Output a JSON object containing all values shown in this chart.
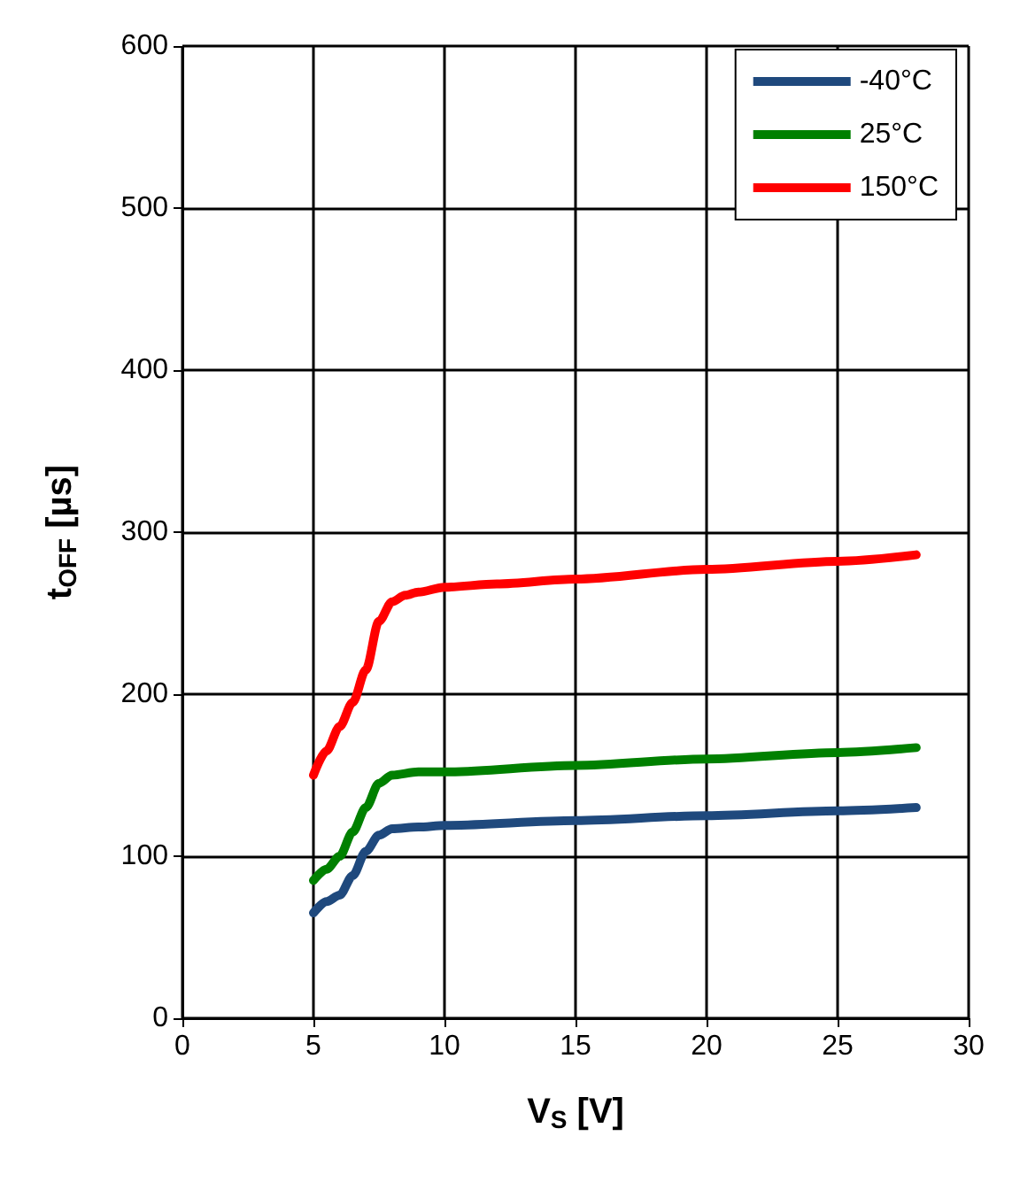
{
  "chart_data": {
    "type": "line",
    "xlabel": "V$_{S}$ [V]",
    "ylabel": "t$_{OFF}$ [µs]",
    "xlim": [
      0,
      30
    ],
    "xticks": [
      0,
      5,
      10,
      15,
      20,
      25,
      30
    ],
    "ylim": [
      0,
      600
    ],
    "yticks": [
      0,
      100,
      200,
      300,
      400,
      500,
      600
    ],
    "grid": true,
    "legend": "top right",
    "marker": "none",
    "line_style": "solid",
    "series": [
      {
        "name": "-40°C",
        "color": "#1f497d",
        "x": [
          5,
          5.5,
          6,
          6.5,
          7,
          7.5,
          8,
          9,
          10,
          15,
          20,
          25,
          28
        ],
        "values": [
          65,
          72,
          76,
          88,
          103,
          113,
          117,
          118,
          119,
          122,
          125,
          128,
          130
        ]
      },
      {
        "name": "25°C",
        "color": "#008000",
        "x": [
          5,
          5.5,
          6,
          6.5,
          7,
          7.5,
          8,
          9,
          10,
          15,
          20,
          25,
          28
        ],
        "values": [
          85,
          92,
          100,
          115,
          130,
          145,
          150,
          152,
          152,
          156,
          160,
          164,
          167
        ]
      },
      {
        "name": "150°C",
        "color": "#ff0000",
        "x": [
          5,
          5.5,
          6,
          6.5,
          7,
          7.5,
          8,
          8.5,
          9,
          10,
          12,
          15,
          20,
          25,
          28
        ],
        "values": [
          150,
          165,
          180,
          195,
          215,
          245,
          257,
          261,
          263,
          266,
          268,
          271,
          277,
          282,
          286
        ]
      }
    ]
  }
}
